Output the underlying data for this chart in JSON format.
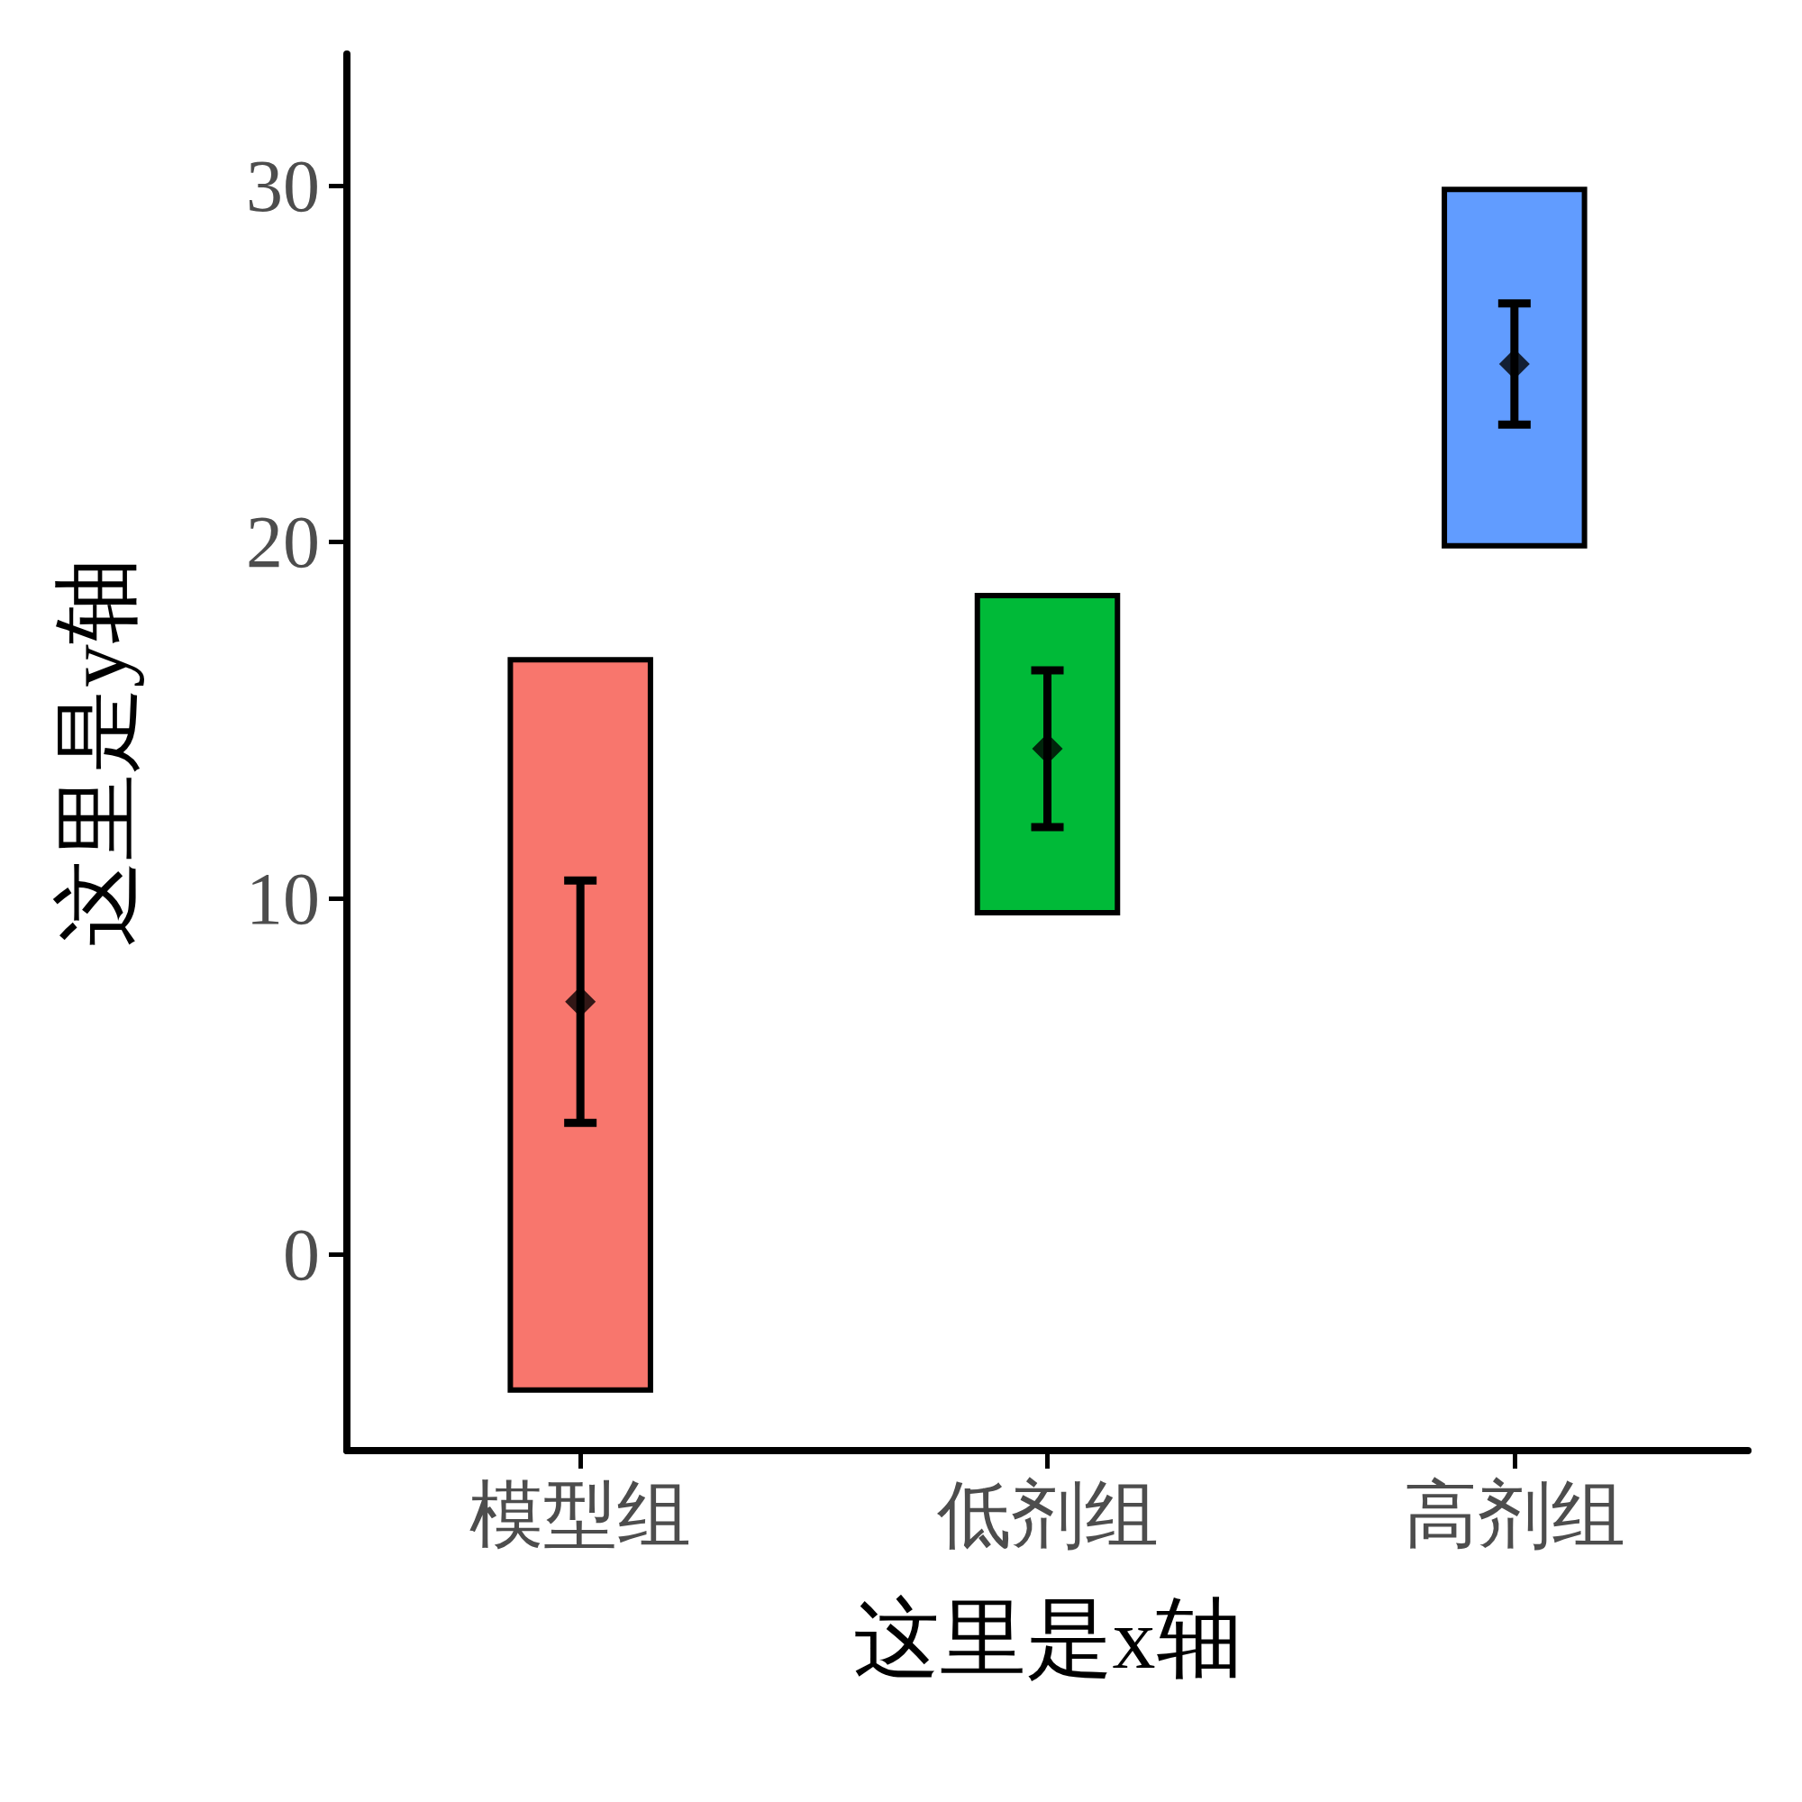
{
  "chart_data": {
    "type": "bar",
    "xlabel": "这里是x轴",
    "ylabel": "这里是y轴",
    "categories": [
      "模型组",
      "低剂组",
      "高剂组"
    ],
    "ylim": [
      -5.5,
      33.7
    ],
    "yticks": [
      0,
      10,
      20,
      30
    ],
    "grid": false,
    "series": [
      {
        "base": [
          -3.8,
          9.6,
          19.9
        ],
        "values": [
          20.5,
          8.9,
          10
        ],
        "colors": [
          "#f8766d",
          "#00ba38",
          "#619cff"
        ]
      },
      {
        "type": "scatter",
        "values": [
          7.1,
          14.2,
          25
        ],
        "errors": [
          3.4,
          2.2,
          1.7
        ],
        "color": "#000000",
        "marker": "diamond"
      }
    ]
  }
}
